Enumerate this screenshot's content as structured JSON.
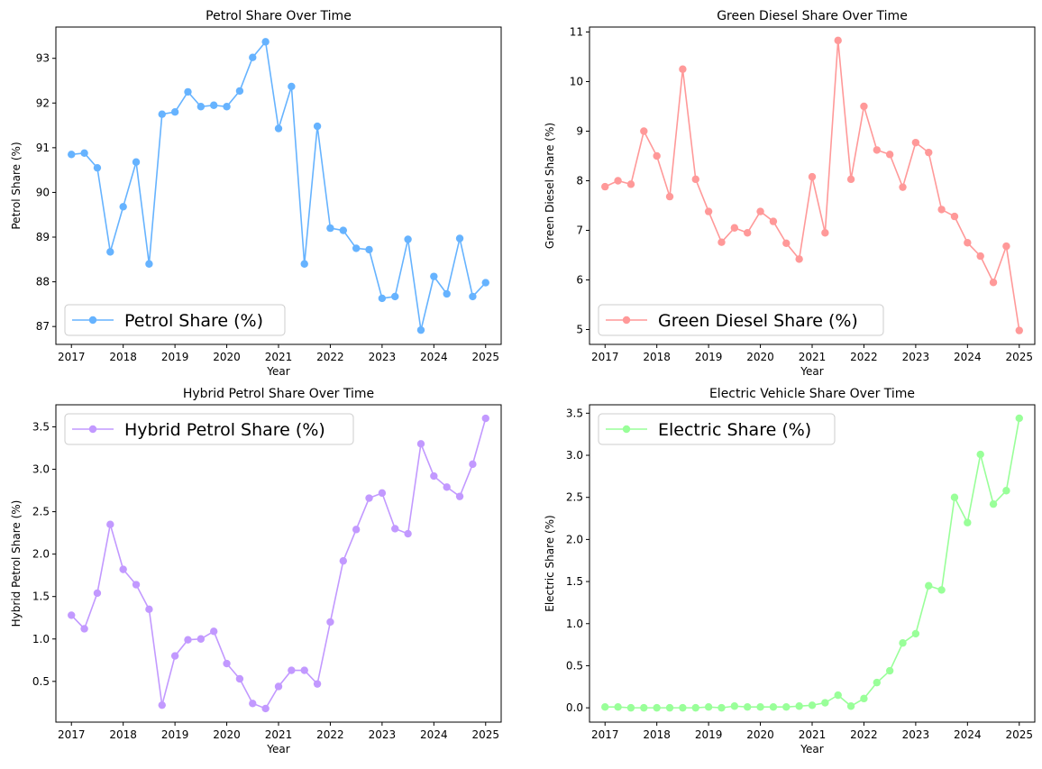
{
  "chart_data": [
    {
      "type": "line",
      "title": "Petrol Share Over Time",
      "xlabel": "Year",
      "ylabel": "Petrol Share (%)",
      "color": "#66b3ff",
      "legend_position": "lower-left",
      "xlim": [
        2016.7,
        2025.3
      ],
      "ylim": [
        86.6,
        93.7
      ],
      "xticks": [
        2017,
        2018,
        2019,
        2020,
        2021,
        2022,
        2023,
        2024,
        2025
      ],
      "yticks": [
        87,
        88,
        89,
        90,
        91,
        92,
        93
      ],
      "series": [
        {
          "name": "Petrol Share (%)",
          "x": [
            2017,
            2017.25,
            2017.5,
            2017.75,
            2018,
            2018.25,
            2018.5,
            2018.75,
            2019,
            2019.25,
            2019.5,
            2019.75,
            2020,
            2020.25,
            2020.5,
            2020.75,
            2021,
            2021.25,
            2021.5,
            2021.75,
            2022,
            2022.25,
            2022.5,
            2022.75,
            2023,
            2023.25,
            2023.5,
            2023.75,
            2024,
            2024.25,
            2024.5,
            2024.75,
            2025
          ],
          "y": [
            90.85,
            90.88,
            90.55,
            88.67,
            89.68,
            90.68,
            88.4,
            91.75,
            91.8,
            92.25,
            91.92,
            91.95,
            91.92,
            92.27,
            93.02,
            93.37,
            91.43,
            92.37,
            88.4,
            91.48,
            89.2,
            89.15,
            88.75,
            88.72,
            87.63,
            87.67,
            88.95,
            86.92,
            88.12,
            87.73,
            88.97,
            87.67,
            87.98
          ]
        }
      ]
    },
    {
      "type": "line",
      "title": "Green Diesel Share Over Time",
      "xlabel": "Year",
      "ylabel": "Green Diesel Share (%)",
      "color": "#ff9999",
      "legend_position": "lower-left",
      "xlim": [
        2016.7,
        2025.3
      ],
      "ylim": [
        4.7,
        11.1
      ],
      "xticks": [
        2017,
        2018,
        2019,
        2020,
        2021,
        2022,
        2023,
        2024,
        2025
      ],
      "yticks": [
        5,
        6,
        7,
        8,
        9,
        10,
        11
      ],
      "series": [
        {
          "name": "Green Diesel Share (%)",
          "x": [
            2017,
            2017.25,
            2017.5,
            2017.75,
            2018,
            2018.25,
            2018.5,
            2018.75,
            2019,
            2019.25,
            2019.5,
            2019.75,
            2020,
            2020.25,
            2020.5,
            2020.75,
            2021,
            2021.25,
            2021.5,
            2021.75,
            2022,
            2022.25,
            2022.5,
            2022.75,
            2023,
            2023.25,
            2023.5,
            2023.75,
            2024,
            2024.25,
            2024.5,
            2024.75,
            2025
          ],
          "y": [
            7.88,
            8.0,
            7.93,
            9.0,
            8.5,
            7.68,
            10.25,
            8.03,
            7.38,
            6.76,
            7.05,
            6.95,
            7.38,
            7.18,
            6.74,
            6.42,
            8.08,
            6.95,
            10.83,
            8.03,
            9.5,
            8.62,
            8.53,
            7.87,
            8.77,
            8.57,
            7.42,
            7.28,
            6.75,
            6.48,
            5.95,
            6.68,
            4.98
          ]
        }
      ]
    },
    {
      "type": "line",
      "title": "Hybrid Petrol Share Over Time",
      "xlabel": "Year",
      "ylabel": "Hybrid Petrol Share (%)",
      "color": "#c299ff",
      "legend_position": "upper-left",
      "xlim": [
        2016.7,
        2025.3
      ],
      "ylim": [
        0.02,
        3.76
      ],
      "xticks": [
        2017,
        2018,
        2019,
        2020,
        2021,
        2022,
        2023,
        2024,
        2025
      ],
      "yticks": [
        0.5,
        1.0,
        1.5,
        2.0,
        2.5,
        3.0,
        3.5
      ],
      "series": [
        {
          "name": "Hybrid Petrol Share (%)",
          "x": [
            2017,
            2017.25,
            2017.5,
            2017.75,
            2018,
            2018.25,
            2018.5,
            2018.75,
            2019,
            2019.25,
            2019.5,
            2019.75,
            2020,
            2020.25,
            2020.5,
            2020.75,
            2021,
            2021.25,
            2021.5,
            2021.75,
            2022,
            2022.25,
            2022.5,
            2022.75,
            2023,
            2023.25,
            2023.5,
            2023.75,
            2024,
            2024.25,
            2024.5,
            2024.75,
            2025
          ],
          "y": [
            1.28,
            1.12,
            1.54,
            2.35,
            1.82,
            1.64,
            1.35,
            0.22,
            0.8,
            0.99,
            1.0,
            1.09,
            0.71,
            0.53,
            0.24,
            0.18,
            0.44,
            0.63,
            0.63,
            0.47,
            1.2,
            1.92,
            2.29,
            2.66,
            2.72,
            2.3,
            2.24,
            3.3,
            2.92,
            2.79,
            2.68,
            3.06,
            3.6
          ]
        }
      ]
    },
    {
      "type": "line",
      "title": "Electric Vehicle Share Over Time",
      "xlabel": "Year",
      "ylabel": "Electric Share (%)",
      "color": "#99ff99",
      "legend_position": "upper-left",
      "xlim": [
        2016.7,
        2025.3
      ],
      "ylim": [
        -0.17,
        3.6
      ],
      "xticks": [
        2017,
        2018,
        2019,
        2020,
        2021,
        2022,
        2023,
        2024,
        2025
      ],
      "yticks": [
        0.0,
        0.5,
        1.0,
        1.5,
        2.0,
        2.5,
        3.0,
        3.5
      ],
      "series": [
        {
          "name": "Electric Share (%)",
          "x": [
            2017,
            2017.25,
            2017.5,
            2017.75,
            2018,
            2018.25,
            2018.5,
            2018.75,
            2019,
            2019.25,
            2019.5,
            2019.75,
            2020,
            2020.25,
            2020.5,
            2020.75,
            2021,
            2021.25,
            2021.5,
            2021.75,
            2022,
            2022.25,
            2022.5,
            2022.75,
            2023,
            2023.25,
            2023.5,
            2023.75,
            2024,
            2024.25,
            2024.5,
            2024.75,
            2025
          ],
          "y": [
            0.01,
            0.01,
            0.0,
            0.0,
            0.0,
            0.0,
            0.0,
            0.0,
            0.01,
            0.0,
            0.02,
            0.01,
            0.01,
            0.01,
            0.01,
            0.02,
            0.03,
            0.06,
            0.15,
            0.02,
            0.11,
            0.3,
            0.44,
            0.77,
            0.88,
            1.45,
            1.4,
            2.5,
            2.2,
            3.01,
            2.42,
            2.58,
            3.44
          ]
        }
      ]
    }
  ]
}
